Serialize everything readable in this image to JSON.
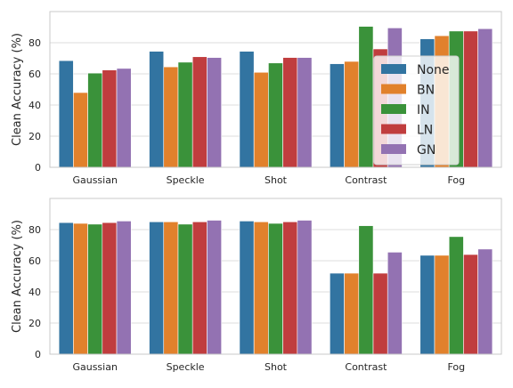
{
  "colors": {
    "None": "#3274a1",
    "BN": "#e1812c",
    "IN": "#3a923a",
    "LN": "#c03d3e",
    "GN": "#9372b2",
    "plot_background": "#ffffff",
    "grid": "#dcdcdc",
    "frame": "#c8c8c8"
  },
  "chart_data": [
    {
      "type": "bar",
      "categories": [
        "Gaussian",
        "Speckle",
        "Shot",
        "Contrast",
        "Fog"
      ],
      "series": [
        {
          "name": "None",
          "values": [
            68.5,
            74.5,
            74.5,
            66.5,
            82.5
          ]
        },
        {
          "name": "BN",
          "values": [
            48,
            64.5,
            61,
            68,
            84.5
          ]
        },
        {
          "name": "IN",
          "values": [
            60.5,
            67.5,
            67,
            90.5,
            87.5
          ]
        },
        {
          "name": "LN",
          "values": [
            62.5,
            71,
            70.5,
            76,
            87.5
          ]
        },
        {
          "name": "GN",
          "values": [
            63.5,
            70.5,
            70.5,
            89.5,
            89
          ]
        }
      ],
      "xlabel": "",
      "ylabel": "Clean Accuracy (%)",
      "ylim": [
        0,
        100
      ],
      "yticks": [
        0,
        20,
        40,
        60,
        80
      ],
      "grid": true,
      "legend": {
        "placement": "center-right",
        "entries": [
          "None",
          "BN",
          "IN",
          "LN",
          "GN"
        ]
      }
    },
    {
      "type": "bar",
      "categories": [
        "Gaussian",
        "Speckle",
        "Shot",
        "Contrast",
        "Fog"
      ],
      "series": [
        {
          "name": "None",
          "values": [
            84.5,
            85,
            85.5,
            52,
            63.5
          ]
        },
        {
          "name": "BN",
          "values": [
            84,
            85,
            85,
            52,
            63.5
          ]
        },
        {
          "name": "IN",
          "values": [
            83.5,
            83.5,
            84,
            82.5,
            75.5
          ]
        },
        {
          "name": "LN",
          "values": [
            84.5,
            85,
            85,
            52,
            64
          ]
        },
        {
          "name": "GN",
          "values": [
            85.5,
            86,
            86,
            65.5,
            67.5
          ]
        }
      ],
      "xlabel": "",
      "ylabel": "Clean Accuracy (%)",
      "ylim": [
        0,
        100
      ],
      "yticks": [
        0,
        20,
        40,
        60,
        80
      ],
      "grid": true
    }
  ]
}
